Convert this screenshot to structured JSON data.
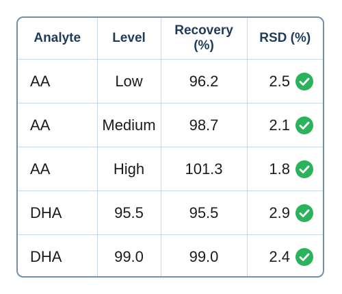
{
  "table": {
    "headers": {
      "analyte": "Analyte",
      "level": "Level",
      "recovery": "Recovery (%)",
      "rsd": "RSD (%)"
    },
    "rows": [
      {
        "analyte": "AA",
        "level": "Low",
        "recovery": "96.2",
        "rsd": "2.5",
        "status_icon": "check-circle-icon"
      },
      {
        "analyte": "AA",
        "level": "Medium",
        "recovery": "98.7",
        "rsd": "2.1",
        "status_icon": "check-circle-icon"
      },
      {
        "analyte": "AA",
        "level": "High",
        "recovery": "101.3",
        "rsd": "1.8",
        "status_icon": "check-circle-icon"
      },
      {
        "analyte": "DHA",
        "level": "95.5",
        "recovery": "95.5",
        "rsd": "2.9",
        "status_icon": "check-circle-icon"
      },
      {
        "analyte": "DHA",
        "level": "99.0",
        "recovery": "99.0",
        "rsd": "2.4",
        "status_icon": "check-circle-icon"
      }
    ]
  },
  "colors": {
    "header_text": "#1f3b5a",
    "border": "#6f8fae",
    "grid": "#c7d6e4",
    "check_fill": "#2bb35c",
    "check_mark": "#ffffff"
  }
}
